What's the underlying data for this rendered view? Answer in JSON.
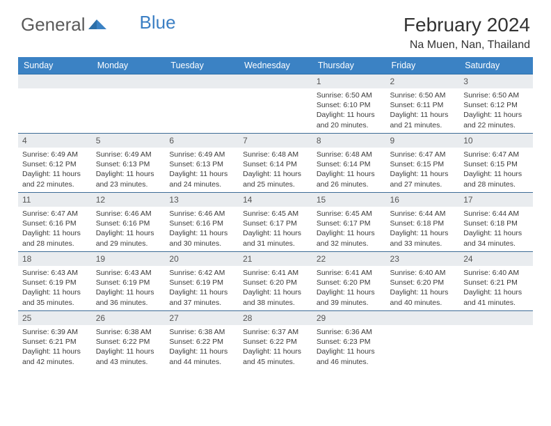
{
  "logo": {
    "general": "General",
    "blue": "Blue"
  },
  "title": "February 2024",
  "location": "Na Muen, Nan, Thailand",
  "colors": {
    "header_bg": "#3b82c4",
    "header_text": "#ffffff",
    "daynum_bg": "#e9ecef",
    "row_border": "#3b6a95",
    "text": "#333333",
    "logo_general": "#5a5a5a",
    "logo_blue": "#3b7fc4"
  },
  "weekdays": [
    "Sunday",
    "Monday",
    "Tuesday",
    "Wednesday",
    "Thursday",
    "Friday",
    "Saturday"
  ],
  "weeks": [
    [
      null,
      null,
      null,
      null,
      {
        "n": "1",
        "sr": "6:50 AM",
        "ss": "6:10 PM",
        "dl": "11 hours and 20 minutes."
      },
      {
        "n": "2",
        "sr": "6:50 AM",
        "ss": "6:11 PM",
        "dl": "11 hours and 21 minutes."
      },
      {
        "n": "3",
        "sr": "6:50 AM",
        "ss": "6:12 PM",
        "dl": "11 hours and 22 minutes."
      }
    ],
    [
      {
        "n": "4",
        "sr": "6:49 AM",
        "ss": "6:12 PM",
        "dl": "11 hours and 22 minutes."
      },
      {
        "n": "5",
        "sr": "6:49 AM",
        "ss": "6:13 PM",
        "dl": "11 hours and 23 minutes."
      },
      {
        "n": "6",
        "sr": "6:49 AM",
        "ss": "6:13 PM",
        "dl": "11 hours and 24 minutes."
      },
      {
        "n": "7",
        "sr": "6:48 AM",
        "ss": "6:14 PM",
        "dl": "11 hours and 25 minutes."
      },
      {
        "n": "8",
        "sr": "6:48 AM",
        "ss": "6:14 PM",
        "dl": "11 hours and 26 minutes."
      },
      {
        "n": "9",
        "sr": "6:47 AM",
        "ss": "6:15 PM",
        "dl": "11 hours and 27 minutes."
      },
      {
        "n": "10",
        "sr": "6:47 AM",
        "ss": "6:15 PM",
        "dl": "11 hours and 28 minutes."
      }
    ],
    [
      {
        "n": "11",
        "sr": "6:47 AM",
        "ss": "6:16 PM",
        "dl": "11 hours and 28 minutes."
      },
      {
        "n": "12",
        "sr": "6:46 AM",
        "ss": "6:16 PM",
        "dl": "11 hours and 29 minutes."
      },
      {
        "n": "13",
        "sr": "6:46 AM",
        "ss": "6:16 PM",
        "dl": "11 hours and 30 minutes."
      },
      {
        "n": "14",
        "sr": "6:45 AM",
        "ss": "6:17 PM",
        "dl": "11 hours and 31 minutes."
      },
      {
        "n": "15",
        "sr": "6:45 AM",
        "ss": "6:17 PM",
        "dl": "11 hours and 32 minutes."
      },
      {
        "n": "16",
        "sr": "6:44 AM",
        "ss": "6:18 PM",
        "dl": "11 hours and 33 minutes."
      },
      {
        "n": "17",
        "sr": "6:44 AM",
        "ss": "6:18 PM",
        "dl": "11 hours and 34 minutes."
      }
    ],
    [
      {
        "n": "18",
        "sr": "6:43 AM",
        "ss": "6:19 PM",
        "dl": "11 hours and 35 minutes."
      },
      {
        "n": "19",
        "sr": "6:43 AM",
        "ss": "6:19 PM",
        "dl": "11 hours and 36 minutes."
      },
      {
        "n": "20",
        "sr": "6:42 AM",
        "ss": "6:19 PM",
        "dl": "11 hours and 37 minutes."
      },
      {
        "n": "21",
        "sr": "6:41 AM",
        "ss": "6:20 PM",
        "dl": "11 hours and 38 minutes."
      },
      {
        "n": "22",
        "sr": "6:41 AM",
        "ss": "6:20 PM",
        "dl": "11 hours and 39 minutes."
      },
      {
        "n": "23",
        "sr": "6:40 AM",
        "ss": "6:20 PM",
        "dl": "11 hours and 40 minutes."
      },
      {
        "n": "24",
        "sr": "6:40 AM",
        "ss": "6:21 PM",
        "dl": "11 hours and 41 minutes."
      }
    ],
    [
      {
        "n": "25",
        "sr": "6:39 AM",
        "ss": "6:21 PM",
        "dl": "11 hours and 42 minutes."
      },
      {
        "n": "26",
        "sr": "6:38 AM",
        "ss": "6:22 PM",
        "dl": "11 hours and 43 minutes."
      },
      {
        "n": "27",
        "sr": "6:38 AM",
        "ss": "6:22 PM",
        "dl": "11 hours and 44 minutes."
      },
      {
        "n": "28",
        "sr": "6:37 AM",
        "ss": "6:22 PM",
        "dl": "11 hours and 45 minutes."
      },
      {
        "n": "29",
        "sr": "6:36 AM",
        "ss": "6:23 PM",
        "dl": "11 hours and 46 minutes."
      },
      null,
      null
    ]
  ],
  "labels": {
    "sunrise": "Sunrise:",
    "sunset": "Sunset:",
    "daylight": "Daylight:"
  }
}
